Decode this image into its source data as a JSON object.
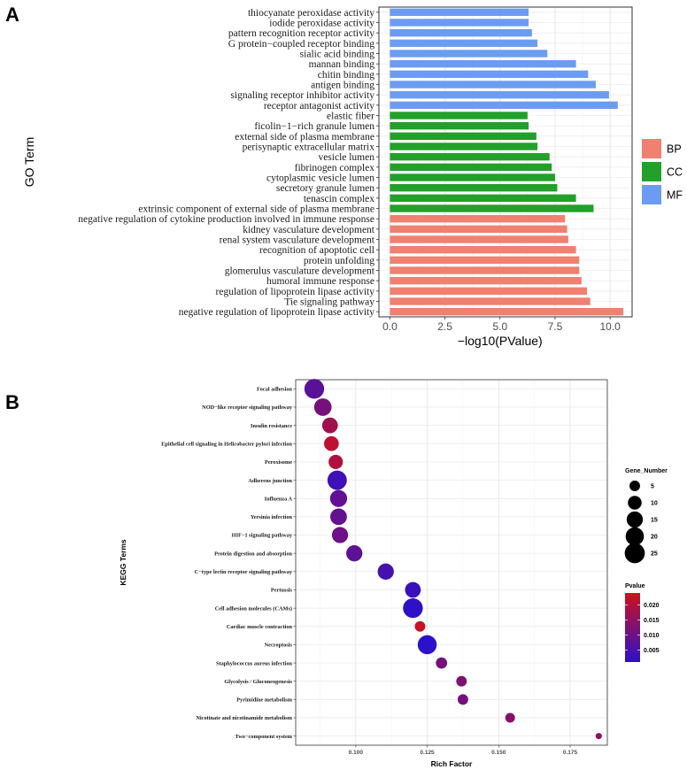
{
  "chart_data": [
    {
      "panel": "A",
      "type": "bar",
      "orientation": "horizontal",
      "xlabel": "−log10(PValue)",
      "ylabel": "GO Term",
      "xlim": [
        -0.5,
        11.0
      ],
      "xticks": [
        "0.0",
        "2.5",
        "5.0",
        "7.5",
        "10.0"
      ],
      "legend": {
        "position": "right",
        "entries": [
          {
            "name": "BP",
            "color": "#F08070"
          },
          {
            "name": "CC",
            "color": "#22A02A"
          },
          {
            "name": "MF",
            "color": "#6C9CF2"
          }
        ]
      },
      "categories": [
        "thiocyanate peroxidase activity",
        "iodide peroxidase activity",
        "pattern recognition receptor activity",
        "G protein−coupled receptor binding",
        "sialic acid binding",
        "mannan binding",
        "chitin binding",
        "antigen binding",
        "signaling receptor inhibitor activity",
        "receptor antagonist activity",
        "elastic fiber",
        "ficolin−1−rich granule lumen",
        "external side of plasma membrane",
        "perisynaptic extracellular matrix",
        "vesicle lumen",
        "fibrinogen complex",
        "cytoplasmic vesicle lumen",
        "secretory granule lumen",
        "tenascin complex",
        "extrinsic component of external side of plasma membrane",
        "negative regulation of cytokine production involved in immune response",
        "kidney vasculature development",
        "renal system vasculature development",
        "recognition of apoptotic cell",
        "protein unfolding",
        "glomerulus vasculature development",
        "humoral immune response",
        "regulation of lipoprotein lipase activity",
        "Tie signaling pathway",
        "negative regulation of lipoprotein lipase activity"
      ],
      "values": [
        6.3,
        6.3,
        6.45,
        6.7,
        7.15,
        8.45,
        9.0,
        9.35,
        9.95,
        10.35,
        6.25,
        6.3,
        6.65,
        6.7,
        7.25,
        7.35,
        7.5,
        7.6,
        8.45,
        9.25,
        7.95,
        8.05,
        8.1,
        8.45,
        8.6,
        8.6,
        8.7,
        8.95,
        9.1,
        10.6
      ],
      "groups": [
        "MF",
        "MF",
        "MF",
        "MF",
        "MF",
        "MF",
        "MF",
        "MF",
        "MF",
        "MF",
        "CC",
        "CC",
        "CC",
        "CC",
        "CC",
        "CC",
        "CC",
        "CC",
        "CC",
        "CC",
        "BP",
        "BP",
        "BP",
        "BP",
        "BP",
        "BP",
        "BP",
        "BP",
        "BP",
        "BP"
      ]
    },
    {
      "panel": "B",
      "type": "scatter",
      "xlabel": "Rich Factor",
      "ylabel": "KEGG Terms",
      "xlim": [
        0.079,
        0.188
      ],
      "xticks": [
        {
          "value": 0.1,
          "label": "0.100"
        },
        {
          "value": 0.125,
          "label": "0.125"
        },
        {
          "value": 0.15,
          "label": "0.150"
        },
        {
          "value": 0.175,
          "label": "0.175"
        }
      ],
      "grid": true,
      "size_legend": {
        "title": "Gene_Number",
        "values": [
          5,
          10,
          15,
          20,
          25
        ]
      },
      "color_legend": {
        "title": "Pvalue",
        "ticks": [
          "0.020",
          "0.015",
          "0.010",
          "0.005"
        ],
        "low_color": "#2B11C9",
        "high_color": "#D0101E",
        "range": [
          0.001,
          0.024
        ]
      },
      "points": [
        {
          "term": "Focal adhesion",
          "rich_factor": 0.0855,
          "gene_number": 24,
          "pvalue": 0.0075
        },
        {
          "term": "NOD−like receptor signaling pathway",
          "rich_factor": 0.0885,
          "gene_number": 18,
          "pvalue": 0.0115
        },
        {
          "term": "Insulin resistance",
          "rich_factor": 0.091,
          "gene_number": 14,
          "pvalue": 0.0175
        },
        {
          "term": "Epithelial cell signaling in Helicobacter pylori infection",
          "rich_factor": 0.0915,
          "gene_number": 12,
          "pvalue": 0.0215
        },
        {
          "term": "Peroxisome",
          "rich_factor": 0.093,
          "gene_number": 11,
          "pvalue": 0.0195
        },
        {
          "term": "Adherens junction",
          "rich_factor": 0.0935,
          "gene_number": 23,
          "pvalue": 0.0035
        },
        {
          "term": "Influenza A",
          "rich_factor": 0.094,
          "gene_number": 17,
          "pvalue": 0.0085
        },
        {
          "term": "Yersinia infection",
          "rich_factor": 0.094,
          "gene_number": 16,
          "pvalue": 0.009
        },
        {
          "term": "HIF−1 signaling pathway",
          "rich_factor": 0.0945,
          "gene_number": 15,
          "pvalue": 0.01
        },
        {
          "term": "Protein digestion and absorption",
          "rich_factor": 0.0995,
          "gene_number": 15,
          "pvalue": 0.008
        },
        {
          "term": "C−type lectin receptor signaling pathway",
          "rich_factor": 0.1105,
          "gene_number": 15,
          "pvalue": 0.0045
        },
        {
          "term": "Pertussis",
          "rich_factor": 0.12,
          "gene_number": 14,
          "pvalue": 0.003
        },
        {
          "term": "Cell adhesion molecules (CAMs)",
          "rich_factor": 0.12,
          "gene_number": 24,
          "pvalue": 0.0015
        },
        {
          "term": "Cardiac muscle contraction",
          "rich_factor": 0.1225,
          "gene_number": 5,
          "pvalue": 0.023
        },
        {
          "term": "Necroptosis",
          "rich_factor": 0.125,
          "gene_number": 22,
          "pvalue": 0.001
        },
        {
          "term": "Staphylococcus aureus infection",
          "rich_factor": 0.13,
          "gene_number": 6,
          "pvalue": 0.0115
        },
        {
          "term": "Glycolysis / Gluconeogenesis",
          "rich_factor": 0.137,
          "gene_number": 5,
          "pvalue": 0.0125
        },
        {
          "term": "Pyrimidine metabolism",
          "rich_factor": 0.1375,
          "gene_number": 5,
          "pvalue": 0.011
        },
        {
          "term": "Nicotinate and nicotinamide metabolism",
          "rich_factor": 0.154,
          "gene_number": 4,
          "pvalue": 0.0135
        },
        {
          "term": "Two−component system",
          "rich_factor": 0.185,
          "gene_number": 1,
          "pvalue": 0.015
        }
      ]
    }
  ]
}
